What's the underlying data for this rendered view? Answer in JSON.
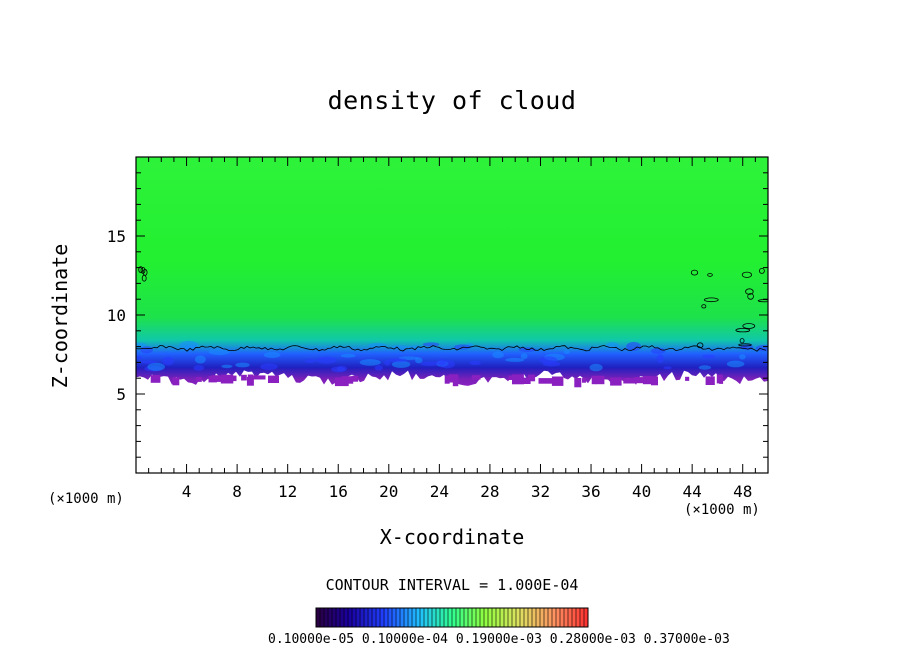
{
  "chart_data": {
    "type": "heatmap",
    "title": "density of cloud",
    "xlabel": "X-coordinate",
    "ylabel": "Z-coordinate",
    "x_unit_label": "(×1000 m)",
    "x_unit_label_right": "(×1000 m)",
    "xlim": [
      0,
      50
    ],
    "ylim": [
      0,
      20
    ],
    "xticks": [
      4,
      8,
      12,
      16,
      20,
      24,
      28,
      32,
      36,
      40,
      44,
      48
    ],
    "xtick_labels": [
      "4",
      "8",
      "12",
      "16",
      "20",
      "24",
      "28",
      "32",
      "36",
      "40",
      "44",
      "48"
    ],
    "yticks": [
      5,
      10,
      15
    ],
    "ytick_labels": [
      "5",
      "10",
      "15"
    ],
    "cloud_base_z": 6.0,
    "cloud_top_z": 20,
    "contour_line_z": 7.9,
    "contour_interval_text": "CONTOUR INTERVAL = 1.000E-04",
    "colorbar_tick_text": "0.10000e-05 0.10000e-04 0.19000e-03 0.28000e-03 0.37000e-03",
    "colorbar_colors": [
      "#2a0040",
      "#1a00a0",
      "#2040ff",
      "#20c0ff",
      "#30ff90",
      "#90ff40",
      "#e0e060",
      "#ff9060",
      "#ff3030"
    ],
    "field_colors": {
      "upper": "#2ef23a",
      "mid": "#00ff00",
      "lower_cyan": "#00c8b0",
      "blue": "#2030ff",
      "base": "#8020c0"
    }
  }
}
